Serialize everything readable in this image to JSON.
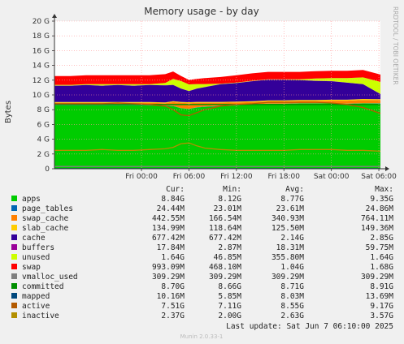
{
  "chart_data": {
    "type": "area",
    "title": "Memory usage - by day",
    "ylabel": "Bytes",
    "side_label": "RRDTOOL / TOBI OETIKER",
    "footer": "Munin 2.0.33-1",
    "last_update": "Last update:  Sat Jun  7 06:10:00 2025",
    "y_ticks": [
      "0",
      "2 G",
      "4 G",
      "6 G",
      "8 G",
      "10 G",
      "12 G",
      "14 G",
      "16 G",
      "18 G",
      "20 G"
    ],
    "ylim": [
      0,
      20
    ],
    "x_ticks": [
      "Fri 00:00",
      "Fri 06:00",
      "Fri 12:00",
      "Fri 18:00",
      "Sat 00:00",
      "Sat 06:00"
    ],
    "x_range_hours": [
      -11,
      30.2
    ],
    "legend_headers": [
      "Cur:",
      "Min:",
      "Avg:",
      "Max:"
    ],
    "legend": [
      {
        "name": "apps",
        "color": "#00cc00",
        "cur": "8.84G",
        "min": "8.12G",
        "avg": "8.77G",
        "max": "9.35G"
      },
      {
        "name": "page_tables",
        "color": "#0066b3",
        "cur": "24.44M",
        "min": "23.01M",
        "avg": "23.61M",
        "max": "24.86M"
      },
      {
        "name": "swap_cache",
        "color": "#ff8000",
        "cur": "442.55M",
        "min": "166.54M",
        "avg": "340.93M",
        "max": "764.11M"
      },
      {
        "name": "slab_cache",
        "color": "#ffcc00",
        "cur": "134.99M",
        "min": "118.64M",
        "avg": "125.50M",
        "max": "149.36M"
      },
      {
        "name": "cache",
        "color": "#330099",
        "cur": "677.42M",
        "min": "677.42M",
        "avg": "2.14G",
        "max": "2.85G"
      },
      {
        "name": "buffers",
        "color": "#990099",
        "cur": "17.84M",
        "min": "2.87M",
        "avg": "18.31M",
        "max": "59.75M"
      },
      {
        "name": "unused",
        "color": "#ccff00",
        "cur": "1.64G",
        "min": "46.85M",
        "avg": "355.80M",
        "max": "1.64G"
      },
      {
        "name": "swap",
        "color": "#ff0000",
        "cur": "993.09M",
        "min": "468.10M",
        "avg": "1.04G",
        "max": "1.68G"
      },
      {
        "name": "vmalloc_used",
        "color": "#808080",
        "cur": "309.29M",
        "min": "309.29M",
        "avg": "309.29M",
        "max": "309.29M"
      },
      {
        "name": "committed",
        "color": "#008f00",
        "cur": "8.70G",
        "min": "8.66G",
        "avg": "8.71G",
        "max": "8.91G"
      },
      {
        "name": "mapped",
        "color": "#00487d",
        "cur": "10.16M",
        "min": "5.85M",
        "avg": "8.03M",
        "max": "13.69M"
      },
      {
        "name": "active",
        "color": "#b35a00",
        "cur": "7.51G",
        "min": "7.11G",
        "avg": "8.55G",
        "max": "9.17G"
      },
      {
        "name": "inactive",
        "color": "#b38f00",
        "cur": "2.37G",
        "min": "2.00G",
        "avg": "2.63G",
        "max": "3.57G"
      }
    ],
    "stack_order": [
      "apps",
      "page_tables",
      "swap_cache",
      "slab_cache",
      "cache",
      "buffers",
      "unused",
      "swap"
    ],
    "line_series": [
      "vmalloc_used",
      "committed",
      "mapped",
      "active",
      "inactive"
    ],
    "x_hours": [
      -11,
      -9,
      -7,
      -5,
      -3,
      -1,
      1,
      3,
      4,
      5,
      6,
      7,
      8,
      10,
      12,
      14,
      16,
      18,
      20,
      22,
      24,
      26,
      28,
      30.2
    ],
    "series": [
      {
        "name": "apps",
        "values": [
          8.6,
          8.6,
          8.6,
          8.6,
          8.6,
          8.6,
          8.6,
          8.55,
          8.5,
          8.2,
          8.1,
          8.3,
          8.4,
          8.5,
          8.6,
          8.7,
          8.8,
          8.8,
          8.85,
          8.85,
          8.85,
          8.8,
          8.85,
          8.84
        ]
      },
      {
        "name": "page_tables",
        "values": [
          0.024,
          0.024,
          0.024,
          0.024,
          0.024,
          0.024,
          0.024,
          0.024,
          0.024,
          0.024,
          0.024,
          0.024,
          0.024,
          0.024,
          0.024,
          0.024,
          0.024,
          0.024,
          0.024,
          0.024,
          0.024,
          0.024,
          0.024,
          0.024
        ]
      },
      {
        "name": "swap_cache",
        "values": [
          0.3,
          0.3,
          0.3,
          0.3,
          0.3,
          0.3,
          0.3,
          0.3,
          0.5,
          0.7,
          0.76,
          0.6,
          0.5,
          0.4,
          0.35,
          0.3,
          0.3,
          0.3,
          0.3,
          0.3,
          0.35,
          0.4,
          0.45,
          0.44
        ]
      },
      {
        "name": "slab_cache",
        "values": [
          0.12,
          0.12,
          0.12,
          0.12,
          0.12,
          0.12,
          0.12,
          0.12,
          0.13,
          0.13,
          0.13,
          0.13,
          0.13,
          0.13,
          0.13,
          0.13,
          0.13,
          0.13,
          0.13,
          0.13,
          0.13,
          0.13,
          0.13,
          0.13
        ]
      },
      {
        "name": "cache",
        "values": [
          2.2,
          2.2,
          2.3,
          2.2,
          2.3,
          2.2,
          2.3,
          2.3,
          2.2,
          1.8,
          1.5,
          1.8,
          2.0,
          2.4,
          2.5,
          2.7,
          2.8,
          2.8,
          2.7,
          2.6,
          2.5,
          2.3,
          2.0,
          0.68
        ]
      },
      {
        "name": "buffers",
        "values": [
          0.02,
          0.02,
          0.02,
          0.02,
          0.02,
          0.02,
          0.02,
          0.02,
          0.02,
          0.02,
          0.02,
          0.02,
          0.02,
          0.02,
          0.02,
          0.02,
          0.02,
          0.02,
          0.02,
          0.02,
          0.02,
          0.02,
          0.02,
          0.018
        ]
      },
      {
        "name": "unused",
        "values": [
          0.1,
          0.1,
          0.1,
          0.2,
          0.1,
          0.2,
          0.1,
          0.3,
          0.8,
          1.0,
          0.9,
          0.6,
          0.4,
          0.05,
          0.05,
          0.05,
          0.05,
          0.05,
          0.1,
          0.3,
          0.4,
          0.6,
          0.9,
          1.64
        ]
      },
      {
        "name": "swap",
        "values": [
          1.2,
          1.2,
          1.2,
          1.2,
          1.2,
          1.2,
          1.2,
          1.2,
          1.0,
          0.7,
          0.6,
          0.7,
          0.8,
          0.9,
          1.0,
          1.0,
          1.0,
          1.0,
          1.0,
          1.0,
          1.0,
          1.0,
          1.0,
          0.99
        ]
      },
      {
        "name": "vmalloc_used",
        "values": [
          0.31,
          0.31,
          0.31,
          0.31,
          0.31,
          0.31,
          0.31,
          0.31,
          0.31,
          0.31,
          0.31,
          0.31,
          0.31,
          0.31,
          0.31,
          0.31,
          0.31,
          0.31,
          0.31,
          0.31,
          0.31,
          0.31,
          0.31,
          0.31
        ]
      },
      {
        "name": "committed",
        "values": [
          8.7,
          8.7,
          8.7,
          8.7,
          8.7,
          8.7,
          8.7,
          8.7,
          8.7,
          8.7,
          8.7,
          8.7,
          8.7,
          8.7,
          8.7,
          8.7,
          8.7,
          8.7,
          8.7,
          8.7,
          8.7,
          8.7,
          8.7,
          8.7
        ]
      },
      {
        "name": "mapped",
        "values": [
          0.008,
          0.008,
          0.008,
          0.008,
          0.008,
          0.008,
          0.008,
          0.008,
          0.008,
          0.008,
          0.008,
          0.008,
          0.008,
          0.008,
          0.008,
          0.008,
          0.008,
          0.008,
          0.008,
          0.008,
          0.008,
          0.008,
          0.008,
          0.01
        ]
      },
      {
        "name": "active",
        "values": [
          8.8,
          8.8,
          8.8,
          8.8,
          8.9,
          8.8,
          8.7,
          8.5,
          8.0,
          7.3,
          7.2,
          7.6,
          8.0,
          8.5,
          8.7,
          8.8,
          9.0,
          9.0,
          9.0,
          9.0,
          8.9,
          8.7,
          8.3,
          7.51
        ]
      },
      {
        "name": "inactive",
        "values": [
          2.5,
          2.5,
          2.5,
          2.6,
          2.5,
          2.5,
          2.6,
          2.7,
          2.9,
          3.4,
          3.5,
          3.1,
          2.8,
          2.6,
          2.5,
          2.5,
          2.5,
          2.5,
          2.6,
          2.6,
          2.6,
          2.5,
          2.5,
          2.37
        ]
      }
    ]
  }
}
